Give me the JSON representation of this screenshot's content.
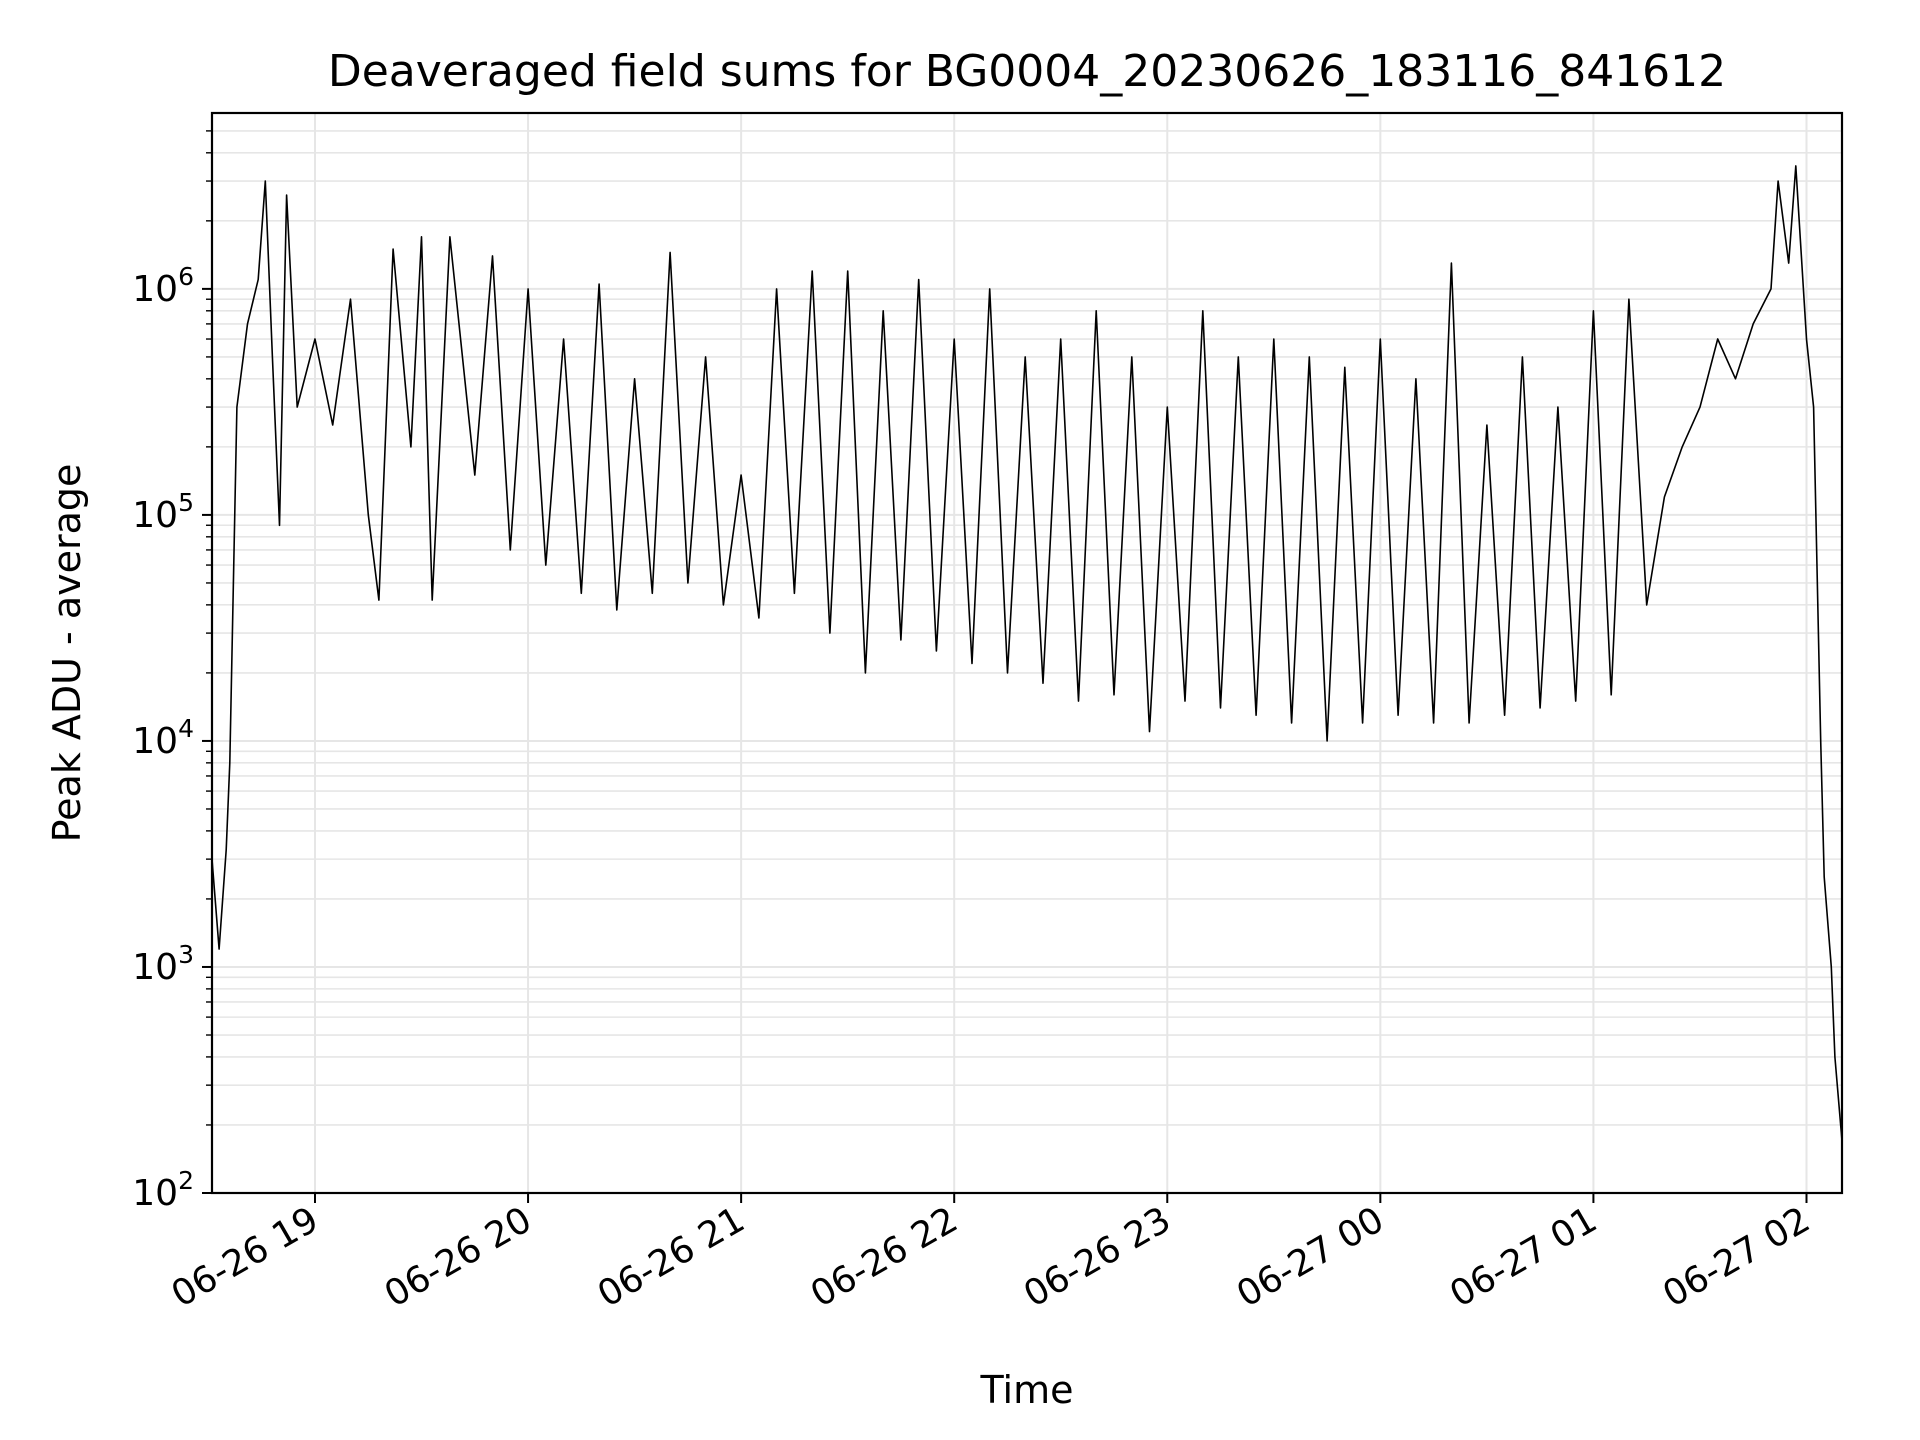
{
  "chart_data": {
    "type": "line",
    "title": "Deaveraged field sums for BG0004_20230626_183116_841612",
    "xlabel": "Time",
    "ylabel": "Peak ADU - average",
    "yscale": "log",
    "ylim": [
      100,
      6000000
    ],
    "xlim": [
      "2023-06-26 18:31",
      "2023-06-27 02:10"
    ],
    "grid": "on (major and minor)",
    "line_color": "#000000",
    "grid_color": "#e6e6e6",
    "x_ticks": [
      {
        "t": "2023-06-26 19:00",
        "label": "06-26 19"
      },
      {
        "t": "2023-06-26 20:00",
        "label": "06-26 20"
      },
      {
        "t": "2023-06-26 21:00",
        "label": "06-26 21"
      },
      {
        "t": "2023-06-26 22:00",
        "label": "06-26 22"
      },
      {
        "t": "2023-06-26 23:00",
        "label": "06-26 23"
      },
      {
        "t": "2023-06-27 00:00",
        "label": "06-27 00"
      },
      {
        "t": "2023-06-27 01:00",
        "label": "06-27 01"
      },
      {
        "t": "2023-06-27 02:00",
        "label": "06-27 02"
      }
    ],
    "y_ticks": [
      {
        "v": 100,
        "base": "10",
        "exp": "2"
      },
      {
        "v": 1000,
        "base": "10",
        "exp": "3"
      },
      {
        "v": 10000,
        "base": "10",
        "exp": "4"
      },
      {
        "v": 100000,
        "base": "10",
        "exp": "5"
      },
      {
        "v": 1000000,
        "base": "10",
        "exp": "6"
      }
    ],
    "series": [
      {
        "points": [
          [
            "2023-06-26 18:31",
            3000
          ],
          [
            "2023-06-26 18:33",
            1200
          ],
          [
            "2023-06-26 18:35",
            3300
          ],
          [
            "2023-06-26 18:36",
            8000
          ],
          [
            "2023-06-26 18:38",
            300000
          ],
          [
            "2023-06-26 18:41",
            700000
          ],
          [
            "2023-06-26 18:44",
            1100000
          ],
          [
            "2023-06-26 18:46",
            3000000
          ],
          [
            "2023-06-26 18:48",
            500000
          ],
          [
            "2023-06-26 18:50",
            90000
          ],
          [
            "2023-06-26 18:52",
            2600000
          ],
          [
            "2023-06-26 18:55",
            300000
          ],
          [
            "2023-06-26 19:00",
            600000
          ],
          [
            "2023-06-26 19:05",
            250000
          ],
          [
            "2023-06-26 19:10",
            900000
          ],
          [
            "2023-06-26 19:15",
            100000
          ],
          [
            "2023-06-26 19:18",
            42000
          ],
          [
            "2023-06-26 19:22",
            1500000
          ],
          [
            "2023-06-26 19:27",
            200000
          ],
          [
            "2023-06-26 19:30",
            1700000
          ],
          [
            "2023-06-26 19:33",
            42000
          ],
          [
            "2023-06-26 19:38",
            1700000
          ],
          [
            "2023-06-26 19:45",
            150000
          ],
          [
            "2023-06-26 19:50",
            1400000
          ],
          [
            "2023-06-26 19:55",
            70000
          ],
          [
            "2023-06-26 20:00",
            1000000
          ],
          [
            "2023-06-26 20:05",
            60000
          ],
          [
            "2023-06-26 20:10",
            600000
          ],
          [
            "2023-06-26 20:15",
            45000
          ],
          [
            "2023-06-26 20:20",
            1050000
          ],
          [
            "2023-06-26 20:25",
            38000
          ],
          [
            "2023-06-26 20:30",
            400000
          ],
          [
            "2023-06-26 20:35",
            45000
          ],
          [
            "2023-06-26 20:40",
            1450000
          ],
          [
            "2023-06-26 20:45",
            50000
          ],
          [
            "2023-06-26 20:50",
            500000
          ],
          [
            "2023-06-26 20:55",
            40000
          ],
          [
            "2023-06-26 21:00",
            150000
          ],
          [
            "2023-06-26 21:05",
            35000
          ],
          [
            "2023-06-26 21:10",
            1000000
          ],
          [
            "2023-06-26 21:15",
            45000
          ],
          [
            "2023-06-26 21:20",
            1200000
          ],
          [
            "2023-06-26 21:25",
            30000
          ],
          [
            "2023-06-26 21:30",
            1200000
          ],
          [
            "2023-06-26 21:35",
            20000
          ],
          [
            "2023-06-26 21:40",
            800000
          ],
          [
            "2023-06-26 21:45",
            28000
          ],
          [
            "2023-06-26 21:50",
            1100000
          ],
          [
            "2023-06-26 21:55",
            25000
          ],
          [
            "2023-06-26 22:00",
            600000
          ],
          [
            "2023-06-26 22:05",
            22000
          ],
          [
            "2023-06-26 22:10",
            1000000
          ],
          [
            "2023-06-26 22:15",
            20000
          ],
          [
            "2023-06-26 22:20",
            500000
          ],
          [
            "2023-06-26 22:25",
            18000
          ],
          [
            "2023-06-26 22:30",
            600000
          ],
          [
            "2023-06-26 22:35",
            15000
          ],
          [
            "2023-06-26 22:40",
            800000
          ],
          [
            "2023-06-26 22:45",
            16000
          ],
          [
            "2023-06-26 22:50",
            500000
          ],
          [
            "2023-06-26 22:55",
            11000
          ],
          [
            "2023-06-26 23:00",
            300000
          ],
          [
            "2023-06-26 23:05",
            15000
          ],
          [
            "2023-06-26 23:10",
            800000
          ],
          [
            "2023-06-26 23:15",
            14000
          ],
          [
            "2023-06-26 23:20",
            500000
          ],
          [
            "2023-06-26 23:25",
            13000
          ],
          [
            "2023-06-26 23:30",
            600000
          ],
          [
            "2023-06-26 23:35",
            12000
          ],
          [
            "2023-06-26 23:40",
            500000
          ],
          [
            "2023-06-26 23:45",
            10000
          ],
          [
            "2023-06-26 23:50",
            450000
          ],
          [
            "2023-06-26 23:55",
            12000
          ],
          [
            "2023-06-27 00:00",
            600000
          ],
          [
            "2023-06-27 00:05",
            13000
          ],
          [
            "2023-06-27 00:10",
            400000
          ],
          [
            "2023-06-27 00:15",
            12000
          ],
          [
            "2023-06-27 00:20",
            1300000
          ],
          [
            "2023-06-27 00:25",
            12000
          ],
          [
            "2023-06-27 00:30",
            250000
          ],
          [
            "2023-06-27 00:35",
            13000
          ],
          [
            "2023-06-27 00:40",
            500000
          ],
          [
            "2023-06-27 00:45",
            14000
          ],
          [
            "2023-06-27 00:50",
            300000
          ],
          [
            "2023-06-27 00:55",
            15000
          ],
          [
            "2023-06-27 01:00",
            800000
          ],
          [
            "2023-06-27 01:05",
            16000
          ],
          [
            "2023-06-27 01:10",
            900000
          ],
          [
            "2023-06-27 01:15",
            40000
          ],
          [
            "2023-06-27 01:20",
            120000
          ],
          [
            "2023-06-27 01:25",
            200000
          ],
          [
            "2023-06-27 01:30",
            300000
          ],
          [
            "2023-06-27 01:35",
            600000
          ],
          [
            "2023-06-27 01:40",
            400000
          ],
          [
            "2023-06-27 01:45",
            700000
          ],
          [
            "2023-06-27 01:50",
            1000000
          ],
          [
            "2023-06-27 01:52",
            3000000
          ],
          [
            "2023-06-27 01:55",
            1300000
          ],
          [
            "2023-06-27 01:57",
            3500000
          ],
          [
            "2023-06-27 02:00",
            600000
          ],
          [
            "2023-06-27 02:02",
            300000
          ],
          [
            "2023-06-27 02:04",
            10000
          ],
          [
            "2023-06-27 02:05",
            2500
          ],
          [
            "2023-06-27 02:07",
            1000
          ],
          [
            "2023-06-27 02:08",
            400
          ],
          [
            "2023-06-27 02:10",
            170
          ]
        ]
      }
    ]
  }
}
